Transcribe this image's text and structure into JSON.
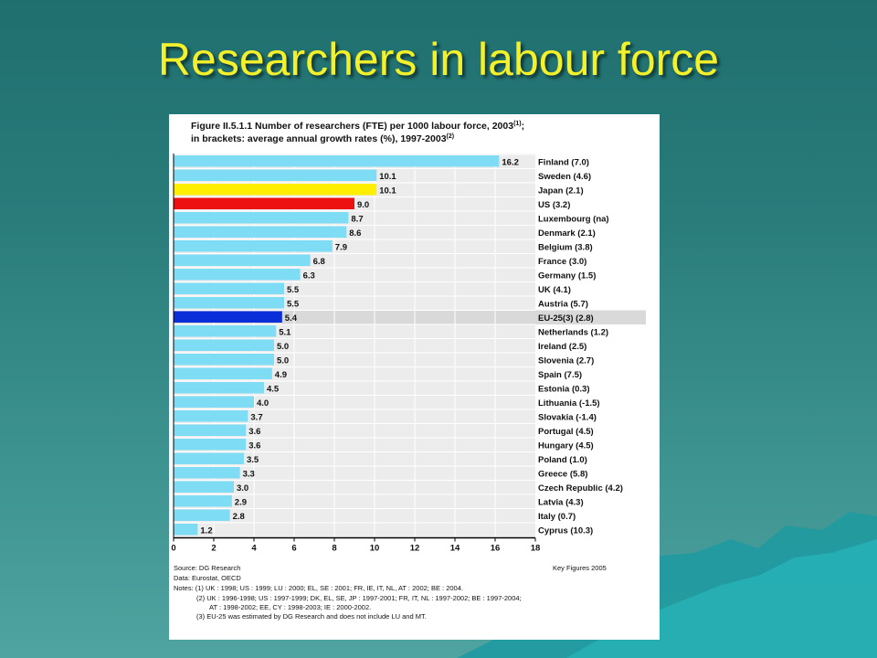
{
  "slide": {
    "title": "Researchers in labour force"
  },
  "figure": {
    "title_line1": "Figure II.5.1.1 Number of researchers (FTE) per 1000 labour force, 2003",
    "title_line1_sup": "(1)",
    "title_line1_end": ";",
    "title_line2": "in brackets: average annual growth rates (%), 1997-2003",
    "title_line2_sup": "(2)",
    "source": "Source: DG Research",
    "key_figures": "Key Figures 2005",
    "data_note": "Data: Eurostat, OECD",
    "notes": [
      "Notes: (1) UK : 1998; US : 1999; LU : 2000; EL, SE : 2001; FR, IE, IT, NL, AT : 2002; BE : 2004.",
      "(2) UK : 1996-1998; US : 1997-1999; DK, EL, SE, JP : 1997-2001; FR, IT, NL : 1997-2002; BE : 1997-2004;",
      "AT : 1998-2002; EE, CY : 1998-2003; IE : 2000-2002.",
      "(3) EU-25 was estimated by DG Research and does not include LU and MT."
    ]
  },
  "colors": {
    "default_bar": "#7fdcf5",
    "japan": "#ffee00",
    "us": "#ee1111",
    "eu25": "#0a2fd8",
    "eu25_band": "#d9d9d9",
    "plot_bg": "#ececec",
    "title_text": "#f4f02a"
  },
  "chart_data": {
    "type": "bar",
    "orientation": "horizontal",
    "categories": [
      "Finland (7.0)",
      "Sweden (4.6)",
      "Japan (2.1)",
      "US (3.2)",
      "Luxembourg (na)",
      "Denmark (2.1)",
      "Belgium (3.8)",
      "France (3.0)",
      "Germany (1.5)",
      "UK (4.1)",
      "Austria (5.7)",
      "EU-25(3) (2.8)",
      "Netherlands (1.2)",
      "Ireland (2.5)",
      "Slovenia (2.7)",
      "Spain (7.5)",
      "Estonia (0.3)",
      "Lithuania (-1.5)",
      "Slovakia (-1.4)",
      "Portugal (4.5)",
      "Hungary (4.5)",
      "Poland (1.0)",
      "Greece (5.8)",
      "Czech Republic (4.2)",
      "Latvia (4.3)",
      "Italy (0.7)",
      "Cyprus (10.3)"
    ],
    "values": [
      16.2,
      10.1,
      10.1,
      9.0,
      8.7,
      8.6,
      7.9,
      6.8,
      6.3,
      5.5,
      5.5,
      5.4,
      5.1,
      5.0,
      5.0,
      4.9,
      4.5,
      4.0,
      3.7,
      3.6,
      3.6,
      3.5,
      3.3,
      3.0,
      2.9,
      2.8,
      1.2
    ],
    "value_labels": [
      "16.2",
      "10.1",
      "10.1",
      "9.0",
      "8.7",
      "8.6",
      "7.9",
      "6.8",
      "6.3",
      "5.5",
      "5.5",
      "5.4",
      "5.1",
      "5.0",
      "5.0",
      "4.9",
      "4.5",
      "4.0",
      "3.7",
      "3.6",
      "3.6",
      "3.5",
      "3.3",
      "3.0",
      "2.9",
      "2.8",
      "1.2"
    ],
    "highlight": {
      "Japan (2.1)": "japan",
      "US (3.2)": "us",
      "EU-25(3) (2.8)": "eu25"
    },
    "xlim": [
      0,
      18
    ],
    "xticks": [
      0,
      2,
      4,
      6,
      8,
      10,
      12,
      14,
      16,
      18
    ],
    "grid": true
  }
}
